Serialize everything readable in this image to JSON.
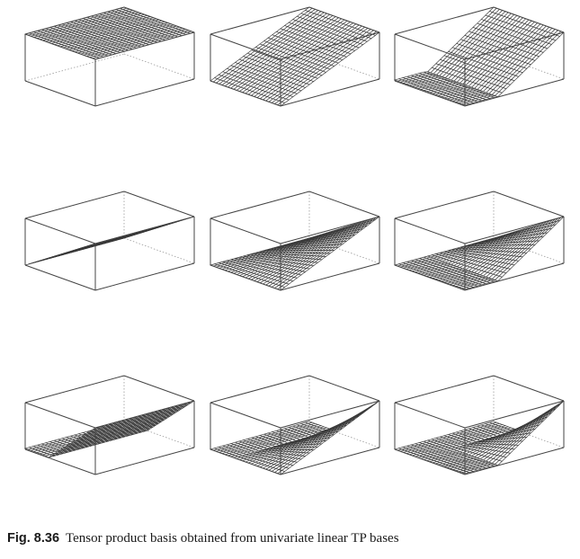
{
  "caption": {
    "label": "Fig. 8.36",
    "text": "Tensor product basis obtained from univariate linear TP bases"
  },
  "panels": [
    {
      "name": "panel-r1-c1",
      "basis_x": "const",
      "basis_y": "const"
    },
    {
      "name": "panel-r1-c2",
      "basis_x": "rising",
      "basis_y": "const"
    },
    {
      "name": "panel-r1-c3",
      "basis_x": "hinge",
      "basis_y": "const"
    },
    {
      "name": "panel-r2-c1",
      "basis_x": "const",
      "basis_y": "rising"
    },
    {
      "name": "panel-r2-c2",
      "basis_x": "rising",
      "basis_y": "rising"
    },
    {
      "name": "panel-r2-c3",
      "basis_x": "hinge",
      "basis_y": "rising"
    },
    {
      "name": "panel-r3-c1",
      "basis_x": "const",
      "basis_y": "hinge"
    },
    {
      "name": "panel-r3-c2",
      "basis_x": "rising",
      "basis_y": "hinge"
    },
    {
      "name": "panel-r3-c3",
      "basis_x": "hinge",
      "basis_y": "hinge"
    }
  ]
}
